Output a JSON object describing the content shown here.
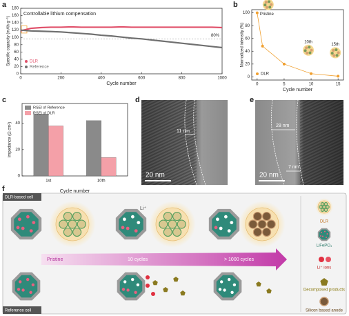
{
  "panel_labels": [
    "a",
    "b",
    "c",
    "d",
    "e",
    "f"
  ],
  "chart_data": [
    {
      "type": "line",
      "title": "Controllable lithium compensation",
      "x_label": "Cycle number",
      "y_label": "Specific capacity (mAh g⁻¹)",
      "x": [
        0,
        50,
        100,
        150,
        200,
        250,
        300,
        350,
        400,
        450,
        500,
        550,
        600,
        650,
        700,
        750,
        800,
        850,
        900,
        950,
        1000
      ],
      "series": [
        {
          "name": "DLR",
          "color": "#e0506a",
          "values": [
            118,
            125,
            127,
            128,
            128,
            129,
            128,
            128,
            128,
            128,
            129,
            128,
            128,
            128,
            128,
            128,
            128,
            128,
            128,
            128,
            127
          ]
        },
        {
          "name": "Reference",
          "color": "#707070",
          "values": [
            120,
            118,
            117,
            116,
            115,
            113,
            111,
            109,
            106,
            104,
            101,
            98,
            96,
            93,
            90,
            87,
            84,
            81,
            78,
            75,
            72
          ]
        }
      ],
      "threshold": {
        "value": 96,
        "label": "80%"
      },
      "xlim": [
        0,
        1000
      ],
      "xticks": [
        0,
        200,
        400,
        600,
        800,
        1000
      ],
      "ylim": [
        0,
        180
      ],
      "yticks": [
        0,
        20,
        40,
        60,
        80,
        100,
        120,
        140,
        160,
        180
      ]
    },
    {
      "type": "scatter",
      "x_label": "Cycle number",
      "y_label": "Normalized intensity (%)",
      "x": [
        0,
        1,
        5,
        10,
        15
      ],
      "series": [
        {
          "name": "DLR",
          "color": "#f0a030",
          "values": [
            100,
            48,
            20,
            5,
            1
          ]
        }
      ],
      "annotations": [
        {
          "text": "Pristine",
          "point": 0
        },
        {
          "text": "10th",
          "point": 3
        },
        {
          "text": "15th",
          "point": 4
        }
      ],
      "xlim": [
        -1,
        16
      ],
      "xticks": [
        0,
        5,
        10,
        15
      ],
      "ylim": [
        -5,
        105
      ],
      "yticks": [
        0,
        20,
        40,
        60,
        80,
        100
      ]
    },
    {
      "type": "bar",
      "x_label": "Cycle number",
      "y_label": "Impedance (Ω cm²)",
      "categories": [
        "1st",
        "10th"
      ],
      "series": [
        {
          "name": "RSEI of Reference",
          "color": "#8a8a8a",
          "values": [
            47,
            42
          ]
        },
        {
          "name": "RSEI of DLR",
          "color": "#f4a0a8",
          "values": [
            38,
            14
          ]
        }
      ],
      "ylim": [
        0,
        55
      ],
      "yticks": [
        0,
        20,
        40
      ]
    }
  ],
  "images": [
    {
      "measure": "11 nm",
      "scale_bar": "20 nm"
    },
    {
      "measure_top": "28 nm",
      "measure_bottom": "7 nm",
      "scale_bar": "20 nm"
    }
  ],
  "diagram": {
    "top_label": "DLR-based cell",
    "bottom_label": "Reference cell",
    "ion_label": "Li⁺",
    "stages": [
      "Pristine",
      "10 cycles",
      "> 1000 cycles"
    ],
    "legend": [
      "DLR",
      "LiFePO₄",
      "Li⁺ ions",
      "Decomposed products",
      "Silicon based anode"
    ]
  }
}
